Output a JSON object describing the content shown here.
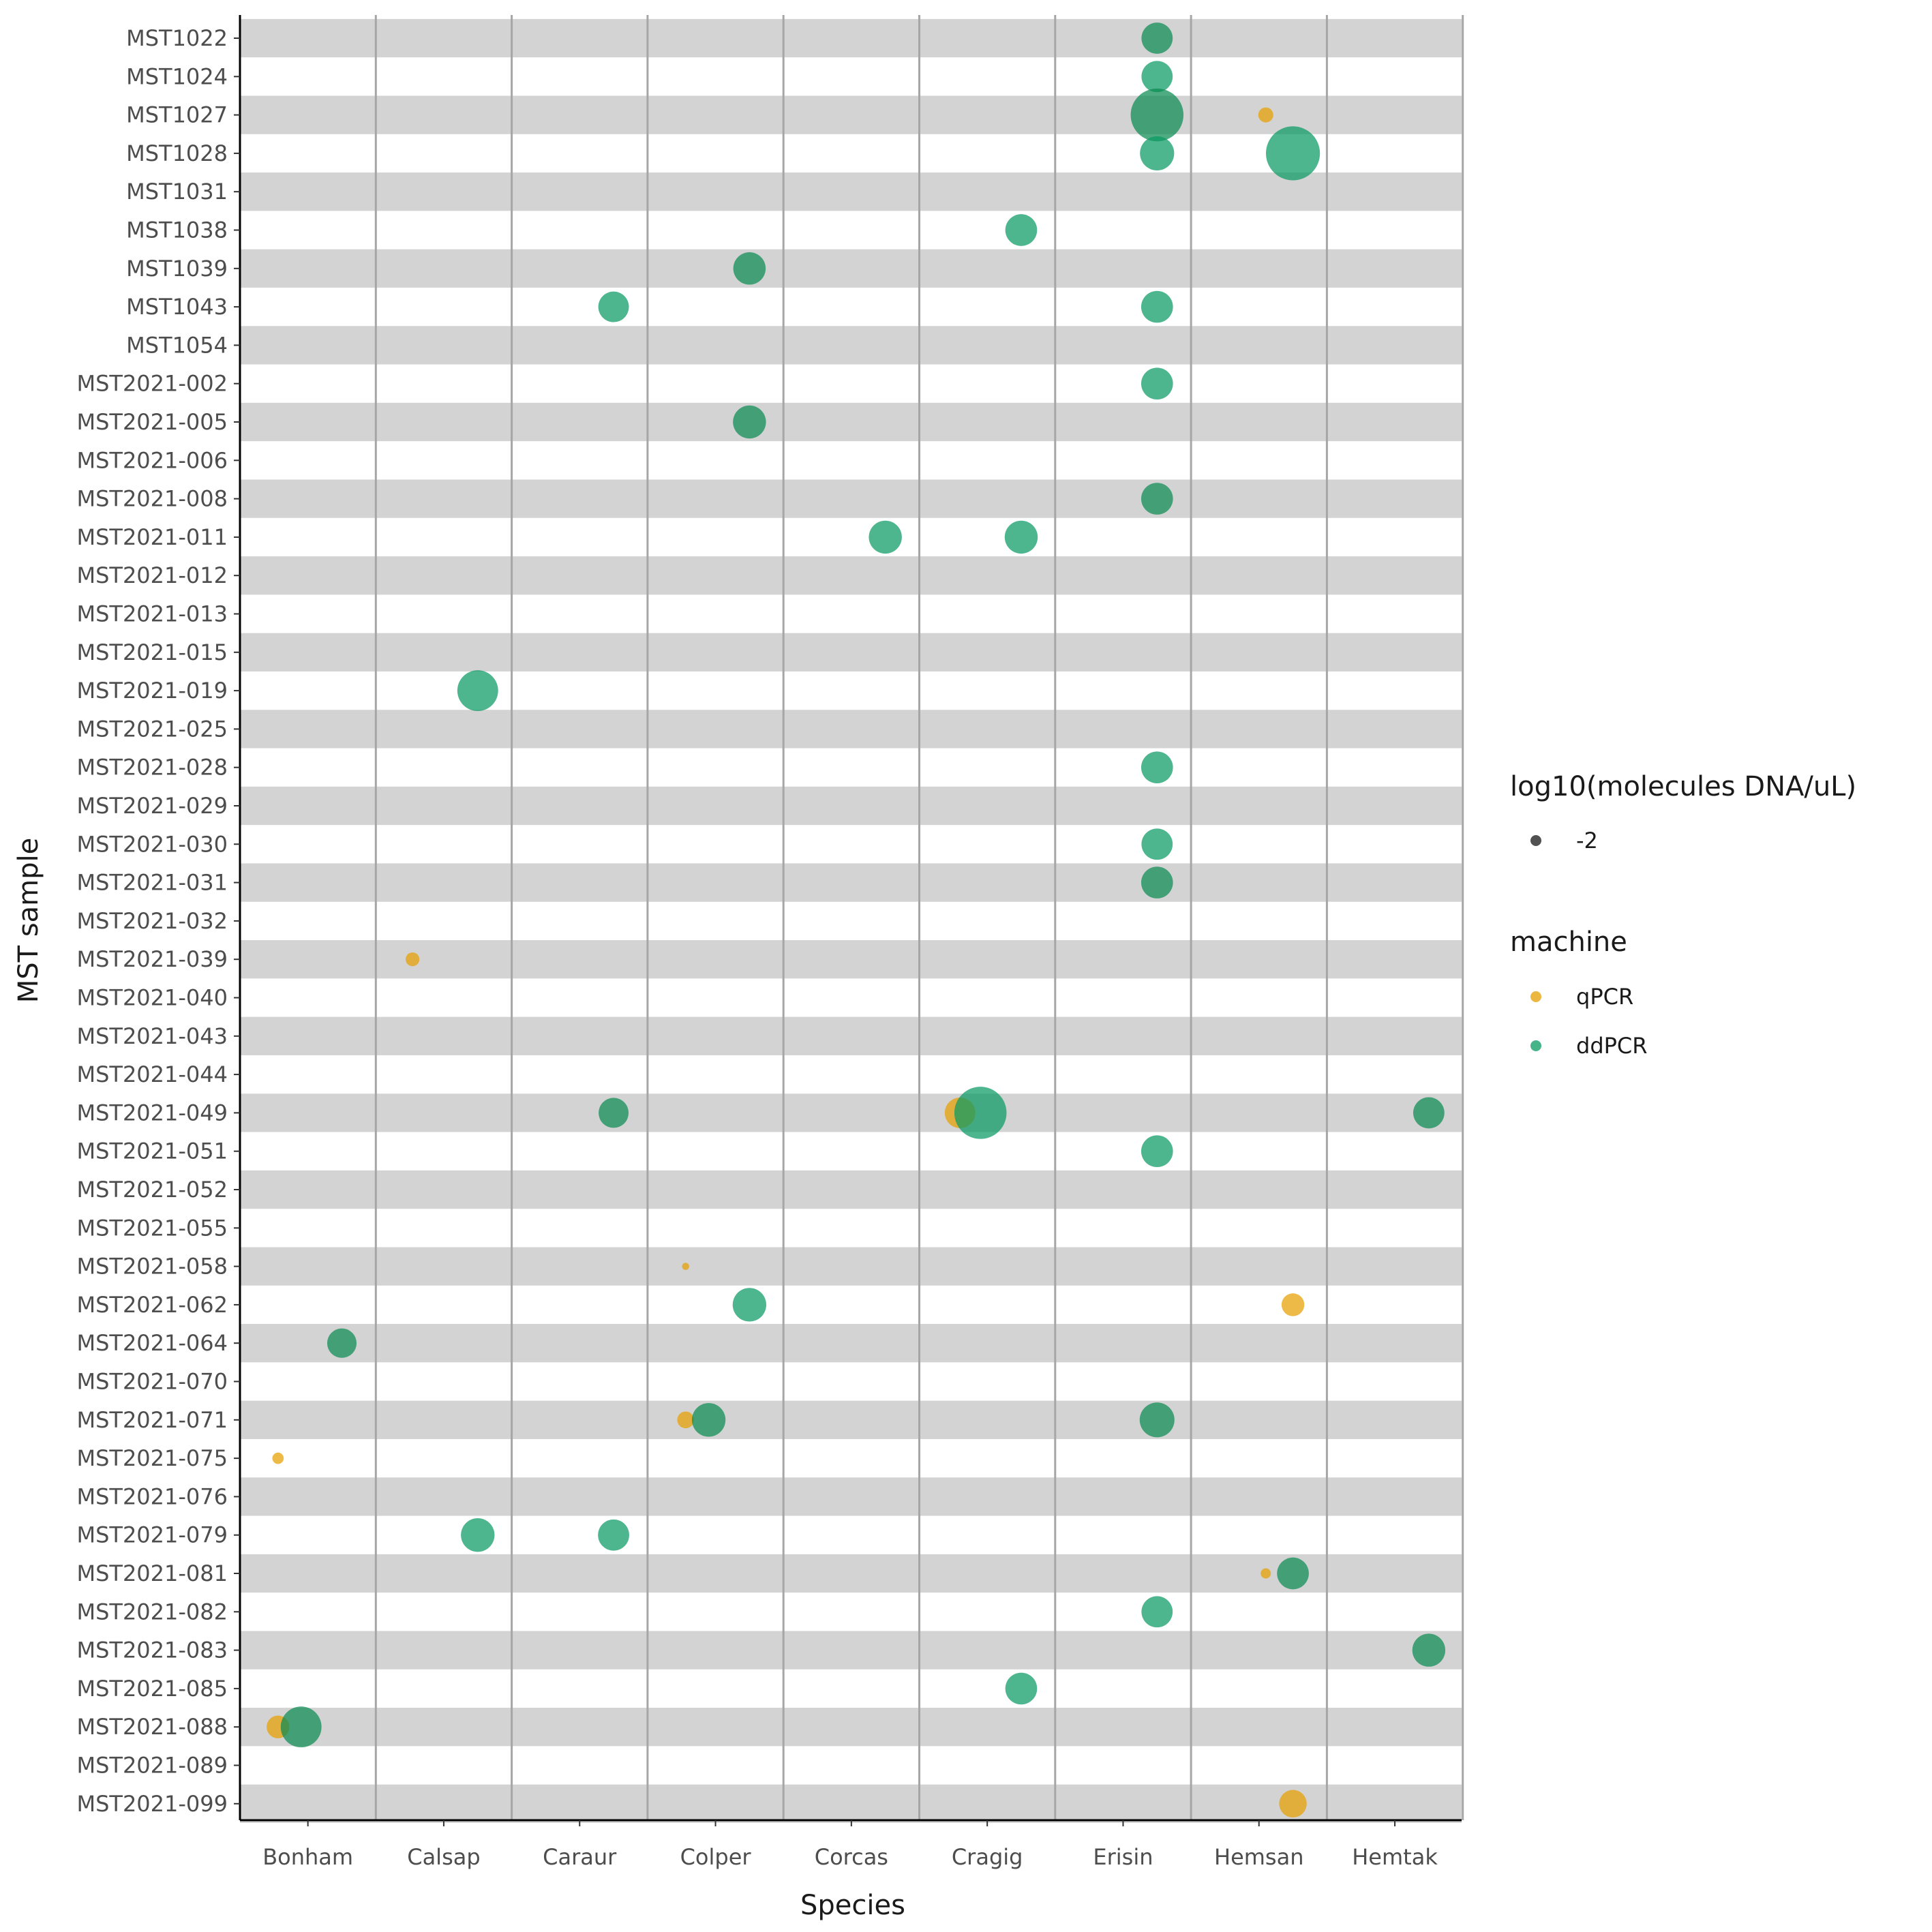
{
  "chart_data": {
    "type": "scatter",
    "xlabel": "Species",
    "ylabel": "MST sample",
    "x_categories": [
      "Bonham",
      "Calsap",
      "Caraur",
      "Colper",
      "Corcas",
      "Cragig",
      "Erisin",
      "Hemsan",
      "Hemtak"
    ],
    "y_categories": [
      "MST1022",
      "MST1024",
      "MST1027",
      "MST1028",
      "MST1031",
      "MST1038",
      "MST1039",
      "MST1043",
      "MST1054",
      "MST2021-002",
      "MST2021-005",
      "MST2021-006",
      "MST2021-008",
      "MST2021-011",
      "MST2021-012",
      "MST2021-013",
      "MST2021-015",
      "MST2021-019",
      "MST2021-025",
      "MST2021-028",
      "MST2021-029",
      "MST2021-030",
      "MST2021-031",
      "MST2021-032",
      "MST2021-039",
      "MST2021-040",
      "MST2021-043",
      "MST2021-044",
      "MST2021-049",
      "MST2021-051",
      "MST2021-052",
      "MST2021-055",
      "MST2021-058",
      "MST2021-062",
      "MST2021-064",
      "MST2021-070",
      "MST2021-071",
      "MST2021-075",
      "MST2021-076",
      "MST2021-079",
      "MST2021-081",
      "MST2021-082",
      "MST2021-083",
      "MST2021-085",
      "MST2021-088",
      "MST2021-089",
      "MST2021-099"
    ],
    "legend": {
      "size_title": "log10(molecules DNA/uL)",
      "size_label": "-2",
      "color_title": "machine",
      "machines": [
        {
          "label": "qPCR",
          "color": "#E69F00"
        },
        {
          "label": "ddPCR",
          "color": "#009E60"
        }
      ],
      "position": "right"
    },
    "colors": {
      "qPCR": "#E69F00",
      "ddPCR": "#0A9A62",
      "ddPCR_dark": "#0A8A52",
      "row_band": "#D3D3D3",
      "grid_line": "#A6A6A6"
    },
    "points": [
      {
        "species": "Erisin",
        "sample": "MST1022",
        "machine": "ddPCR",
        "size": 0.52,
        "dark": true
      },
      {
        "species": "Erisin",
        "sample": "MST1024",
        "machine": "ddPCR",
        "size": 0.52
      },
      {
        "species": "Erisin",
        "sample": "MST1027",
        "machine": "ddPCR",
        "size": 0.88,
        "dark": true
      },
      {
        "species": "Hemsan",
        "sample": "MST1027",
        "machine": "qPCR",
        "size": 0.25
      },
      {
        "species": "Erisin",
        "sample": "MST1028",
        "machine": "ddPCR",
        "size": 0.57
      },
      {
        "species": "Hemsan",
        "sample": "MST1028",
        "machine": "ddPCR",
        "size": 0.9
      },
      {
        "species": "Cragig",
        "sample": "MST1038",
        "machine": "ddPCR",
        "size": 0.53
      },
      {
        "species": "Colper",
        "sample": "MST1039",
        "machine": "ddPCR",
        "size": 0.54,
        "dark": true
      },
      {
        "species": "Caraur",
        "sample": "MST1043",
        "machine": "ddPCR",
        "size": 0.51
      },
      {
        "species": "Erisin",
        "sample": "MST1043",
        "machine": "ddPCR",
        "size": 0.53
      },
      {
        "species": "Erisin",
        "sample": "MST2021-002",
        "machine": "ddPCR",
        "size": 0.53
      },
      {
        "species": "Colper",
        "sample": "MST2021-005",
        "machine": "ddPCR",
        "size": 0.55,
        "dark": true
      },
      {
        "species": "Erisin",
        "sample": "MST2021-008",
        "machine": "ddPCR",
        "size": 0.53,
        "dark": true
      },
      {
        "species": "Corcas",
        "sample": "MST2021-011",
        "machine": "ddPCR",
        "size": 0.55
      },
      {
        "species": "Cragig",
        "sample": "MST2021-011",
        "machine": "ddPCR",
        "size": 0.55
      },
      {
        "species": "Calsap",
        "sample": "MST2021-019",
        "machine": "ddPCR",
        "size": 0.68
      },
      {
        "species": "Erisin",
        "sample": "MST2021-028",
        "machine": "ddPCR",
        "size": 0.53
      },
      {
        "species": "Erisin",
        "sample": "MST2021-030",
        "machine": "ddPCR",
        "size": 0.52
      },
      {
        "species": "Erisin",
        "sample": "MST2021-031",
        "machine": "ddPCR",
        "size": 0.53,
        "dark": true
      },
      {
        "species": "Calsap",
        "sample": "MST2021-039",
        "machine": "qPCR",
        "size": 0.23
      },
      {
        "species": "Caraur",
        "sample": "MST2021-049",
        "machine": "ddPCR",
        "size": 0.5,
        "dark": true
      },
      {
        "species": "Cragig",
        "sample": "MST2021-049",
        "machine": "qPCR",
        "size": 0.51
      },
      {
        "species": "Cragig",
        "sample": "MST2021-049",
        "machine": "ddPCR",
        "size": 0.87,
        "offset": 0.45
      },
      {
        "species": "Hemtak",
        "sample": "MST2021-049",
        "machine": "ddPCR",
        "size": 0.52,
        "dark": true
      },
      {
        "species": "Erisin",
        "sample": "MST2021-051",
        "machine": "ddPCR",
        "size": 0.53
      },
      {
        "species": "Colper",
        "sample": "MST2021-058",
        "machine": "qPCR",
        "size": 0.12
      },
      {
        "species": "Colper",
        "sample": "MST2021-062",
        "machine": "ddPCR",
        "size": 0.56
      },
      {
        "species": "Hemsan",
        "sample": "MST2021-062",
        "machine": "qPCR",
        "size": 0.38
      },
      {
        "species": "Bonham",
        "sample": "MST2021-064",
        "machine": "ddPCR",
        "size": 0.49,
        "dark": true
      },
      {
        "species": "Colper",
        "sample": "MST2021-071",
        "machine": "qPCR",
        "size": 0.28
      },
      {
        "species": "Colper",
        "sample": "MST2021-071",
        "machine": "ddPCR",
        "size": 0.56,
        "dark": true,
        "offset": 0.45
      },
      {
        "species": "Erisin",
        "sample": "MST2021-071",
        "machine": "ddPCR",
        "size": 0.58,
        "dark": true
      },
      {
        "species": "Bonham",
        "sample": "MST2021-075",
        "machine": "qPCR",
        "size": 0.19
      },
      {
        "species": "Calsap",
        "sample": "MST2021-079",
        "machine": "ddPCR",
        "size": 0.56
      },
      {
        "species": "Caraur",
        "sample": "MST2021-079",
        "machine": "ddPCR",
        "size": 0.52
      },
      {
        "species": "Hemsan",
        "sample": "MST2021-081",
        "machine": "ddPCR",
        "size": 0.53,
        "dark": true
      },
      {
        "species": "Hemsan",
        "sample": "MST2021-081",
        "machine": "qPCR",
        "size": 0.17,
        "offset": 0.55
      },
      {
        "species": "Erisin",
        "sample": "MST2021-082",
        "machine": "ddPCR",
        "size": 0.52
      },
      {
        "species": "Hemtak",
        "sample": "MST2021-083",
        "machine": "ddPCR",
        "size": 0.55,
        "dark": true
      },
      {
        "species": "Cragig",
        "sample": "MST2021-085",
        "machine": "ddPCR",
        "size": 0.53
      },
      {
        "species": "Bonham",
        "sample": "MST2021-088",
        "machine": "qPCR",
        "size": 0.38
      },
      {
        "species": "Bonham",
        "sample": "MST2021-088",
        "machine": "ddPCR",
        "size": 0.68,
        "dark": true,
        "offset": 0.45
      },
      {
        "species": "Hemsan",
        "sample": "MST2021-099",
        "machine": "qPCR",
        "size": 0.46
      }
    ]
  }
}
